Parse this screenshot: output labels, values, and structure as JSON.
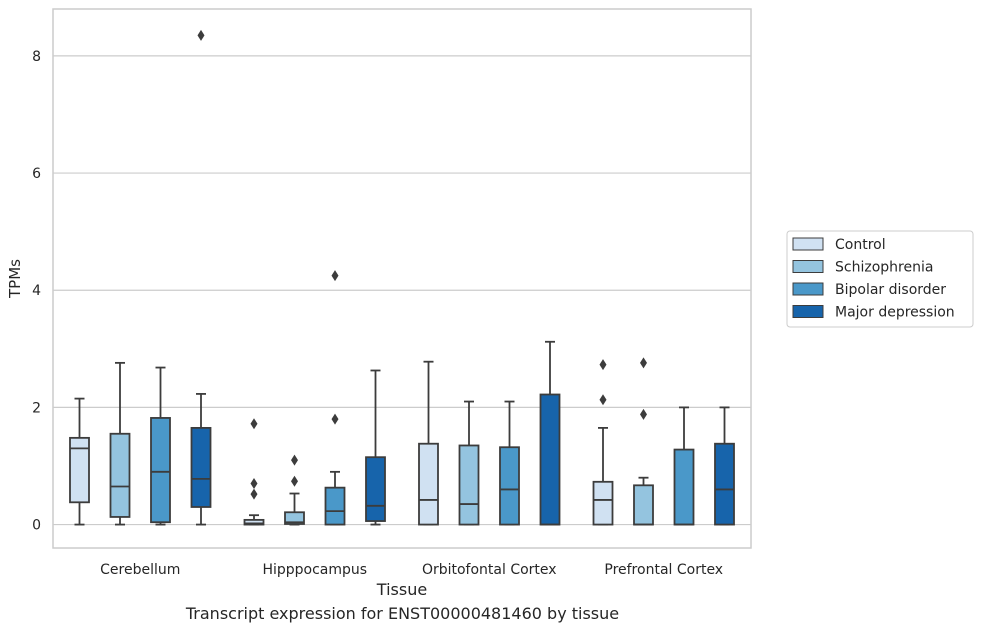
{
  "caption": "Transcript expression for ENST00000481460 by tissue",
  "chart_data": {
    "type": "box",
    "xlabel": "Tissue",
    "ylabel": "TPMs",
    "ylim": [
      -0.4,
      8.8
    ],
    "yticks": [
      0,
      2,
      4,
      6,
      8
    ],
    "grid": "horizontal",
    "legend_position": "right",
    "categories": [
      "Cerebellum",
      "Hipppocampus",
      "Orbitofontal Cortex",
      "Prefrontal Cortex"
    ],
    "series": [
      {
        "name": "Control",
        "color": "#d0e1f2",
        "boxes": [
          {
            "whislo": 0.0,
            "q1": 0.38,
            "med": 1.3,
            "q3": 1.48,
            "whishi": 2.15,
            "fliers": []
          },
          {
            "whislo": 0.0,
            "q1": 0.0,
            "med": 0.02,
            "q3": 0.08,
            "whishi": 0.16,
            "fliers": [
              1.72,
              0.7,
              0.52
            ]
          },
          {
            "whislo": 0.0,
            "q1": 0.0,
            "med": 0.42,
            "q3": 1.38,
            "whishi": 2.78,
            "fliers": []
          },
          {
            "whislo": 0.0,
            "q1": 0.0,
            "med": 0.42,
            "q3": 0.73,
            "whishi": 1.65,
            "fliers": [
              2.73,
              2.13
            ]
          }
        ]
      },
      {
        "name": "Schizophrenia",
        "color": "#94c4df",
        "boxes": [
          {
            "whislo": 0.0,
            "q1": 0.13,
            "med": 0.65,
            "q3": 1.55,
            "whishi": 2.76,
            "fliers": []
          },
          {
            "whislo": 0.0,
            "q1": 0.01,
            "med": 0.04,
            "q3": 0.21,
            "whishi": 0.53,
            "fliers": [
              1.1,
              0.74
            ]
          },
          {
            "whislo": 0.0,
            "q1": 0.0,
            "med": 0.35,
            "q3": 1.35,
            "whishi": 2.1,
            "fliers": []
          },
          {
            "whislo": 0.0,
            "q1": 0.0,
            "med": 0.0,
            "q3": 0.67,
            "whishi": 0.8,
            "fliers": [
              2.76,
              1.88
            ]
          }
        ]
      },
      {
        "name": "Bipolar disorder",
        "color": "#4a98c9",
        "boxes": [
          {
            "whislo": 0.0,
            "q1": 0.04,
            "med": 0.9,
            "q3": 1.82,
            "whishi": 2.68,
            "fliers": []
          },
          {
            "whislo": 0.0,
            "q1": 0.0,
            "med": 0.23,
            "q3": 0.63,
            "whishi": 0.9,
            "fliers": [
              4.25,
              1.8
            ]
          },
          {
            "whislo": 0.0,
            "q1": 0.0,
            "med": 0.6,
            "q3": 1.32,
            "whishi": 2.1,
            "fliers": []
          },
          {
            "whislo": 0.0,
            "q1": 0.0,
            "med": 0.0,
            "q3": 1.28,
            "whishi": 2.0,
            "fliers": []
          }
        ]
      },
      {
        "name": "Major depression",
        "color": "#1764ab",
        "boxes": [
          {
            "whislo": 0.0,
            "q1": 0.3,
            "med": 0.78,
            "q3": 1.65,
            "whishi": 2.23,
            "fliers": [
              8.35
            ]
          },
          {
            "whislo": 0.0,
            "q1": 0.06,
            "med": 0.32,
            "q3": 1.15,
            "whishi": 2.63,
            "fliers": []
          },
          {
            "whislo": 0.0,
            "q1": 0.0,
            "med": 0.0,
            "q3": 2.22,
            "whishi": 3.12,
            "fliers": []
          },
          {
            "whislo": 0.0,
            "q1": 0.0,
            "med": 0.6,
            "q3": 1.38,
            "whishi": 2.0,
            "fliers": []
          }
        ]
      }
    ]
  }
}
